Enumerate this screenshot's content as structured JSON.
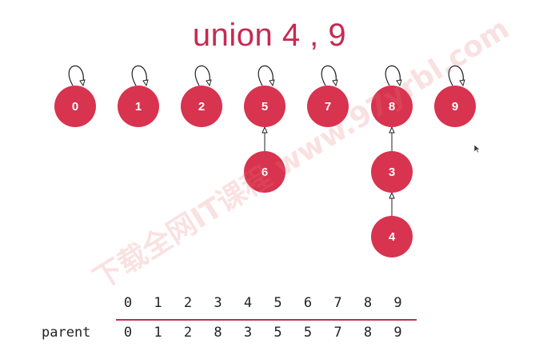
{
  "title": "union 4 , 9",
  "nodes": [
    {
      "id": "0",
      "parent": "0"
    },
    {
      "id": "1",
      "parent": "1"
    },
    {
      "id": "2",
      "parent": "2"
    },
    {
      "id": "5",
      "parent": "5"
    },
    {
      "id": "7",
      "parent": "7"
    },
    {
      "id": "8",
      "parent": "8"
    },
    {
      "id": "9",
      "parent": "9"
    },
    {
      "id": "6",
      "parent": "5"
    },
    {
      "id": "3",
      "parent": "8"
    },
    {
      "id": "4",
      "parent": "3"
    }
  ],
  "table": {
    "row_label": "parent",
    "indices": [
      "0",
      "1",
      "2",
      "3",
      "4",
      "5",
      "6",
      "7",
      "8",
      "9"
    ],
    "parents": [
      "0",
      "1",
      "2",
      "8",
      "3",
      "5",
      "5",
      "7",
      "8",
      "9"
    ]
  },
  "watermark": "下载全网IT课程 www.97yrbl.com",
  "colors": {
    "node": "#d8334f",
    "title": "#c62a52",
    "line": "#c62a52"
  }
}
